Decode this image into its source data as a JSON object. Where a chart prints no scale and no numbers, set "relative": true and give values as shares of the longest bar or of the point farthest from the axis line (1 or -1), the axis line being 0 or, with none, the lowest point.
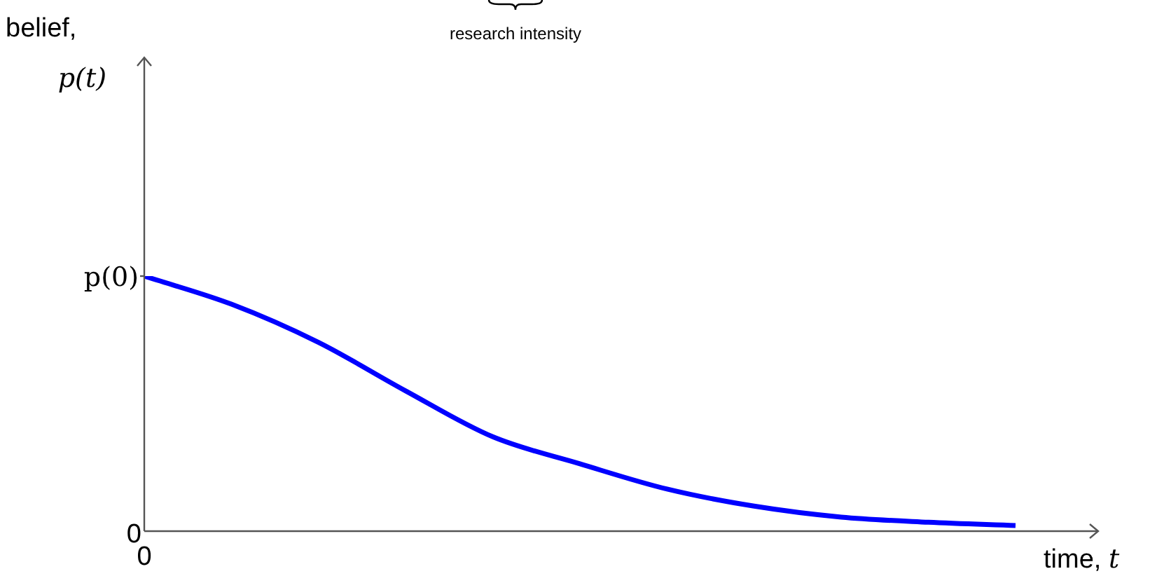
{
  "chart_data": {
    "type": "line",
    "relative": true,
    "xlabel": "time, t",
    "categories": [
      null,
      null,
      null,
      null,
      null,
      null,
      null,
      null,
      null,
      null,
      null
    ],
    "series": [
      {
        "color": "#0000ff",
        "values": [
          1,
          0.89,
          0.74,
          0.55,
          0.37,
          0.264,
          0.165,
          0.098,
          0.055,
          0.035,
          0.022
        ]
      }
    ],
    "annotations": [
      "p(0)",
      "0",
      "0",
      "research intensity",
      "belief, p(t)"
    ],
    "marker": "none",
    "line_style": "solid"
  }
}
